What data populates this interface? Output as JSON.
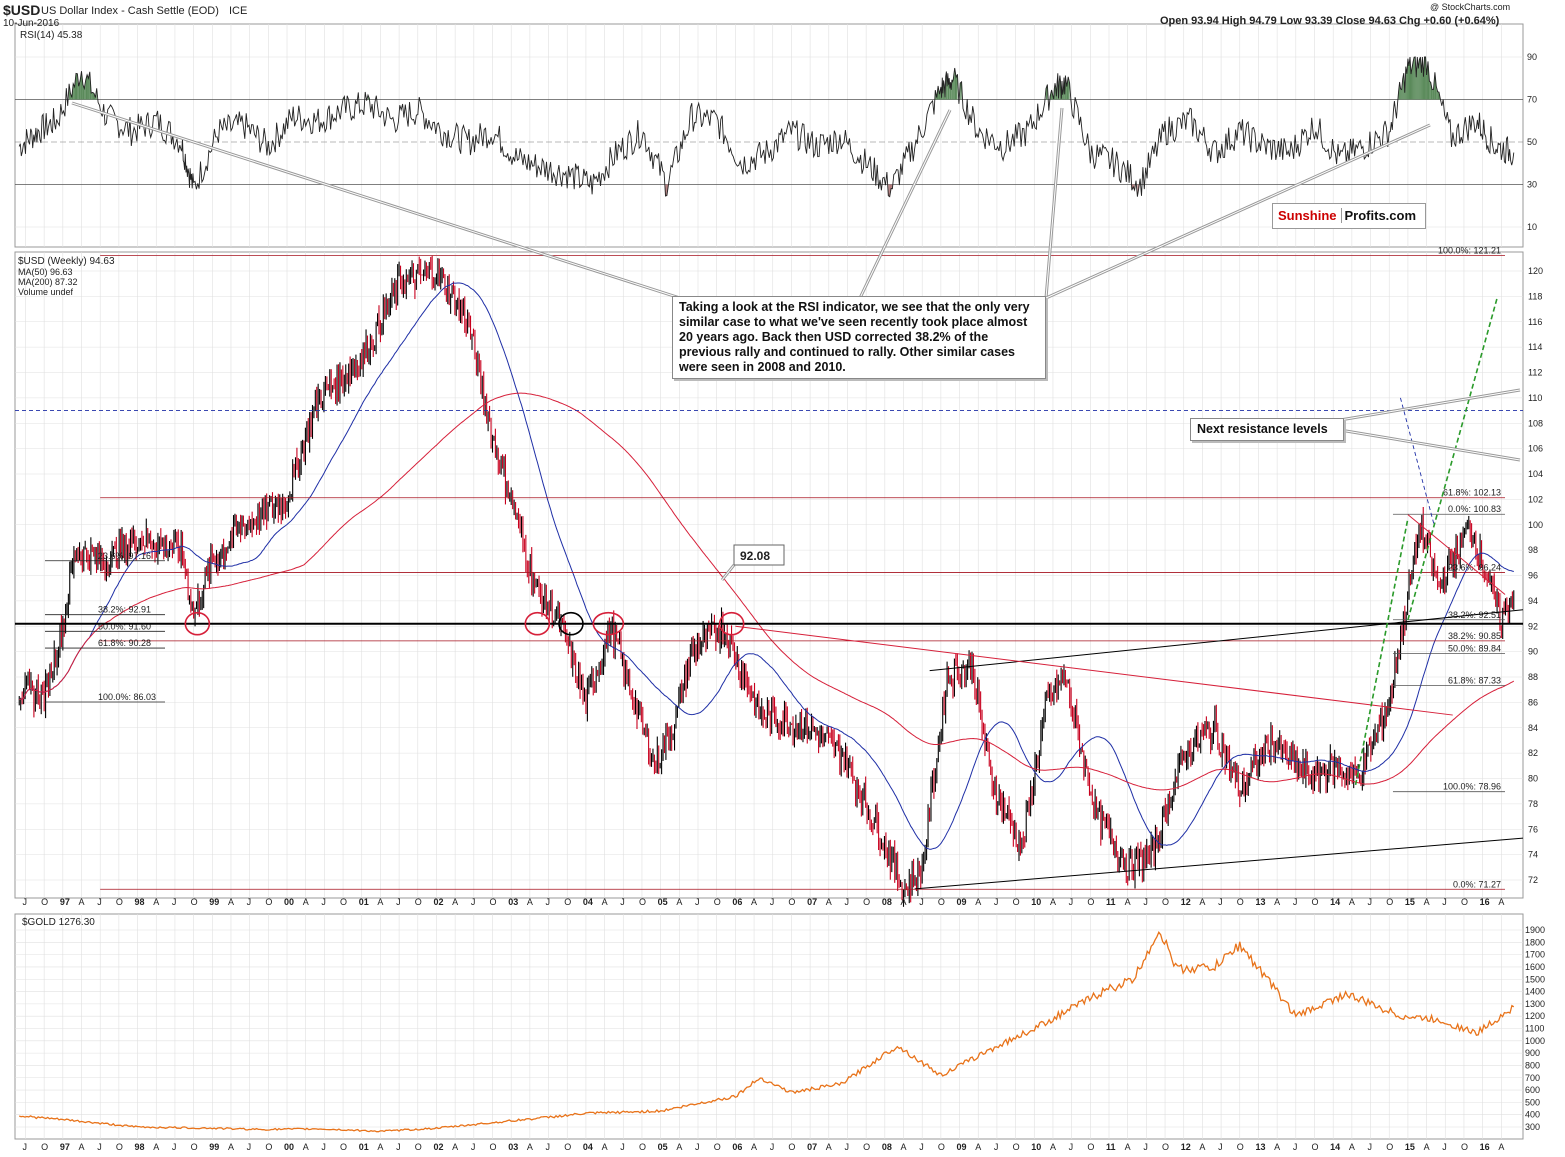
{
  "header": {
    "symbol": "$USD",
    "title": "US Dollar Index - Cash Settle (EOD)",
    "exchange": "ICE",
    "date": "10-Jun-2016",
    "watermark": "@ StockCharts.com",
    "ohlc": "Open 93.94  High 94.79  Low 93.39  Close 94.63  Chg +0.60 (+0.64%)"
  },
  "rsi_panel": {
    "label": "RSI(14) 45.38",
    "ticks": [
      "90",
      "70",
      "50",
      "30",
      "10"
    ]
  },
  "price_panel": {
    "legend": [
      "$USD (Weekly) 94.63",
      "MA(50) 96.63",
      "MA(200) 87.32",
      "Volume undef"
    ],
    "ticks": [
      "120",
      "118",
      "116",
      "114",
      "112",
      "110",
      "108",
      "106",
      "104",
      "102",
      "100",
      "98",
      "96",
      "94",
      "92",
      "90",
      "88",
      "86",
      "84",
      "82",
      "80",
      "78",
      "76",
      "74",
      "72"
    ],
    "fib_left": [
      "23.6%: 97.16",
      "38.2%: 92.91",
      "50.0%: 91.60",
      "61.8%: 90.28",
      "100.0%: 86.03"
    ],
    "fib_right": [
      "100.0%: 121.21",
      "61.8%: 102.13",
      "0.0%: 100.83",
      "23.6%: 96.24",
      "38.2%: 92.51",
      "38.2%: 90.85",
      "50.0%: 89.84",
      "61.8%: 87.33",
      "100.0%: 78.96",
      "0.0%: 71.27"
    ],
    "callout_9208": "92.08",
    "annotation_rsi": "Taking a look at the RSI indicator, we see that the only very similar case to what we've seen recently took place almost 20 years ago. Back then USD corrected 38.2% of the previous rally and continued to rally. Other similar cases were seen in 2008 and 2010.",
    "annotation_resistance": "Next resistance levels"
  },
  "gold_panel": {
    "label": "$GOLD 1276.30",
    "ticks": [
      "1900",
      "1800",
      "1700",
      "1600",
      "1500",
      "1400",
      "1300",
      "1200",
      "1100",
      "1000",
      "900",
      "800",
      "700",
      "600",
      "500",
      "400",
      "300"
    ]
  },
  "x_axis": {
    "labels": [
      "J",
      "O",
      "97",
      "A",
      "J",
      "O",
      "98",
      "A",
      "J",
      "O",
      "99",
      "A",
      "J",
      "O",
      "00",
      "A",
      "J",
      "O",
      "01",
      "A",
      "J",
      "O",
      "02",
      "A",
      "J",
      "O",
      "03",
      "A",
      "J",
      "O",
      "04",
      "A",
      "J",
      "O",
      "05",
      "A",
      "J",
      "O",
      "06",
      "A",
      "J",
      "O",
      "07",
      "A",
      "J",
      "O",
      "08",
      "A",
      "J",
      "O",
      "09",
      "A",
      "J",
      "O",
      "10",
      "A",
      "J",
      "O",
      "11",
      "A",
      "J",
      "O",
      "12",
      "A",
      "J",
      "O",
      "13",
      "A",
      "J",
      "O",
      "14",
      "A",
      "J",
      "O",
      "15",
      "A",
      "J",
      "O",
      "16",
      "A"
    ]
  },
  "logo": {
    "part1": "Sunshine",
    "part2": "Profits.com"
  },
  "colors": {
    "up": "#000000",
    "down": "#c8001e",
    "ma50": "#1f2fa6",
    "ma200": "#d6203a",
    "gold": "#e8731a",
    "rsi_fill": "#5a8a5a",
    "rsi_low": "#b07a7a",
    "grid": "#e0e0e0"
  },
  "chart_data": [
    {
      "type": "line",
      "title": "RSI(14)",
      "ylim": [
        0,
        100
      ],
      "x": [
        "1996-06",
        "1996-09",
        "1996-12",
        "1997-04",
        "1997-08",
        "1997-12",
        "1998-04",
        "1998-08",
        "1998-10",
        "1999-02",
        "1999-06",
        "1999-10",
        "2000-02",
        "2000-06",
        "2000-10",
        "2001-02",
        "2001-06",
        "2001-10",
        "2002-02",
        "2002-06",
        "2002-10",
        "2003-02",
        "2003-06",
        "2003-10",
        "2004-02",
        "2004-06",
        "2004-10",
        "2005-02",
        "2005-06",
        "2005-10",
        "2006-02",
        "2006-06",
        "2006-10",
        "2007-02",
        "2007-06",
        "2007-10",
        "2008-02",
        "2008-06",
        "2008-10",
        "2008-12",
        "2009-04",
        "2009-08",
        "2009-12",
        "2010-04",
        "2010-06",
        "2010-10",
        "2011-02",
        "2011-06",
        "2011-10",
        "2012-02",
        "2012-06",
        "2012-10",
        "2013-02",
        "2013-06",
        "2013-10",
        "2014-02",
        "2014-06",
        "2014-10",
        "2015-01",
        "2015-04",
        "2015-08",
        "2015-12",
        "2016-03",
        "2016-06"
      ],
      "values": [
        48,
        55,
        60,
        84,
        62,
        55,
        60,
        50,
        28,
        55,
        58,
        48,
        62,
        60,
        65,
        68,
        60,
        65,
        55,
        50,
        55,
        42,
        38,
        35,
        30,
        45,
        55,
        30,
        62,
        60,
        40,
        45,
        55,
        48,
        52,
        40,
        28,
        50,
        75,
        80,
        55,
        48,
        55,
        75,
        78,
        45,
        40,
        30,
        55,
        60,
        45,
        55,
        48,
        45,
        58,
        42,
        48,
        55,
        85,
        88,
        52,
        60,
        48,
        45
      ]
    },
    {
      "type": "line",
      "title": "$USD (Weekly)",
      "ylim": [
        71,
        122
      ],
      "x": [
        "1996-06",
        "1996-10",
        "1997-01",
        "1997-03",
        "1997-08",
        "1998-01",
        "1998-08",
        "1998-10",
        "1999-01",
        "1999-06",
        "2000-01",
        "2000-06",
        "2001-01",
        "2001-07",
        "2002-01",
        "2002-06",
        "2002-10",
        "2003-01",
        "2003-05",
        "2003-09",
        "2004-01",
        "2004-05",
        "2004-12",
        "2005-03",
        "2005-06",
        "2005-11",
        "2006-05",
        "2007-01",
        "2007-06",
        "2007-12",
        "2008-04",
        "2008-07",
        "2008-11",
        "2009-03",
        "2009-06",
        "2009-11",
        "2010-03",
        "2010-06",
        "2010-11",
        "2011-04",
        "2011-08",
        "2012-01",
        "2012-06",
        "2012-10",
        "2013-03",
        "2013-07",
        "2013-10",
        "2014-01",
        "2014-05",
        "2014-10",
        "2015-03",
        "2015-06",
        "2015-11",
        "2016-04",
        "2016-06"
      ],
      "values": [
        87,
        86.5,
        92,
        98,
        97,
        99,
        98,
        93,
        97,
        100,
        102,
        110,
        113,
        119,
        120,
        116,
        107,
        102,
        95,
        92,
        86,
        92,
        81,
        84,
        90,
        92,
        85,
        84,
        82,
        76,
        71.3,
        73,
        88,
        89,
        80,
        74.5,
        86,
        88,
        77,
        73,
        74,
        82,
        84,
        79,
        83,
        81,
        80,
        81,
        80,
        86,
        100,
        95,
        100,
        92.5,
        94.6
      ]
    },
    {
      "type": "line",
      "title": "$GOLD",
      "ylim": [
        250,
        1950
      ],
      "x": [
        "1996-06",
        "1997-01",
        "1998-01",
        "1999-01",
        "1999-09",
        "2000-06",
        "2001-04",
        "2002-01",
        "2003-01",
        "2004-01",
        "2005-01",
        "2006-01",
        "2006-05",
        "2006-10",
        "2007-06",
        "2008-03",
        "2008-10",
        "2009-06",
        "2010-01",
        "2010-12",
        "2011-05",
        "2011-09",
        "2011-12",
        "2012-06",
        "2012-10",
        "2013-04",
        "2013-07",
        "2014-03",
        "2014-12",
        "2015-06",
        "2015-12",
        "2016-06"
      ],
      "values": [
        390,
        360,
        300,
        290,
        280,
        285,
        265,
        290,
        350,
        410,
        430,
        550,
        700,
        580,
        650,
        960,
        720,
        930,
        1100,
        1400,
        1500,
        1900,
        1580,
        1600,
        1780,
        1400,
        1200,
        1380,
        1200,
        1170,
        1060,
        1276
      ]
    }
  ]
}
